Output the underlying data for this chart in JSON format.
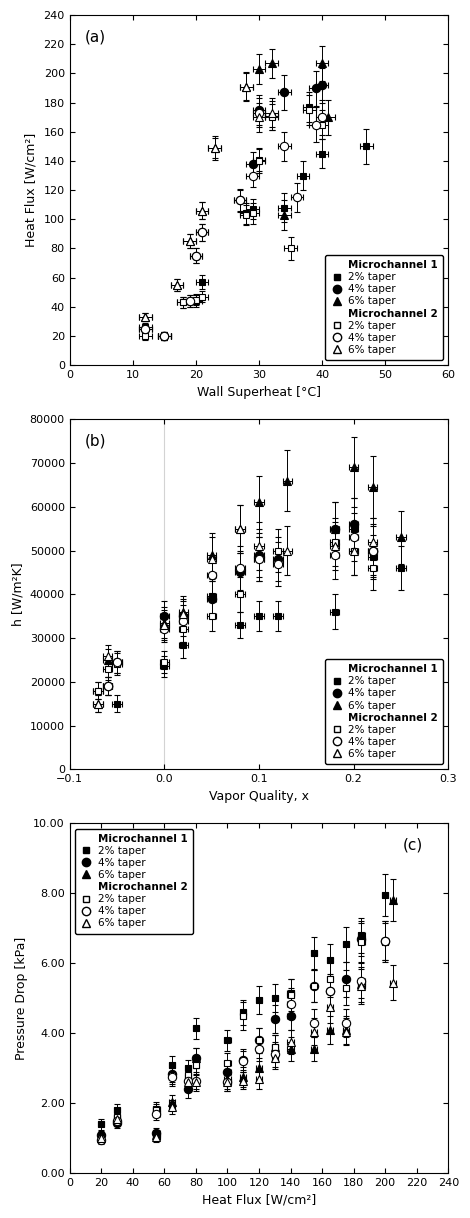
{
  "plot_a": {
    "title_label": "(a)",
    "xlabel": "Wall Superheat [°C]",
    "ylabel": "Heat Flux [W/cm²]",
    "xlim": [
      0,
      60
    ],
    "ylim": [
      0,
      240
    ],
    "xticks": [
      0,
      10,
      20,
      30,
      40,
      50,
      60
    ],
    "yticks": [
      0,
      20,
      40,
      60,
      80,
      100,
      120,
      140,
      160,
      180,
      200,
      220,
      240
    ],
    "mc1_2pct": {
      "x": [
        12,
        15,
        18,
        20,
        21,
        28,
        29,
        30,
        32,
        34,
        37,
        38,
        40,
        47
      ],
      "y": [
        26,
        20,
        43,
        44,
        57,
        104,
        107,
        141,
        171,
        108,
        130,
        177,
        145,
        150
      ],
      "xerr": [
        1,
        1,
        1,
        1,
        1,
        1,
        1,
        1,
        1,
        1,
        1,
        1,
        1,
        1
      ],
      "yerr": [
        3,
        3,
        4,
        4,
        5,
        7,
        7,
        8,
        10,
        10,
        10,
        10,
        10,
        12
      ]
    },
    "mc1_4pct": {
      "x": [
        12,
        15,
        19,
        20,
        21,
        27,
        29,
        30,
        34,
        39,
        40
      ],
      "y": [
        25,
        20,
        44,
        75,
        91,
        113,
        138,
        175,
        187,
        190,
        192
      ],
      "xerr": [
        1,
        1,
        1,
        1,
        1,
        1,
        1,
        1,
        1,
        1,
        1
      ],
      "yerr": [
        3,
        3,
        4,
        5,
        6,
        8,
        8,
        10,
        12,
        12,
        12
      ]
    },
    "mc1_6pct": {
      "x": [
        12,
        17,
        19,
        21,
        23,
        28,
        30,
        32,
        34,
        40,
        41
      ],
      "y": [
        33,
        55,
        85,
        106,
        149,
        191,
        203,
        207,
        103,
        207,
        170
      ],
      "xerr": [
        1,
        1,
        1,
        1,
        1,
        1,
        1,
        1,
        1,
        1,
        1
      ],
      "yerr": [
        3,
        4,
        5,
        6,
        8,
        10,
        10,
        10,
        10,
        12,
        12
      ]
    },
    "mc2_2pct": {
      "x": [
        12,
        15,
        18,
        20,
        21,
        28,
        29,
        30,
        32,
        35,
        38,
        40
      ],
      "y": [
        20,
        20,
        43,
        45,
        47,
        103,
        104,
        140,
        170,
        80,
        175,
        165
      ],
      "xerr": [
        1,
        1,
        1,
        1,
        1,
        1,
        1,
        1,
        1,
        1,
        1,
        1
      ],
      "yerr": [
        3,
        3,
        4,
        4,
        4,
        7,
        7,
        8,
        9,
        8,
        10,
        10
      ]
    },
    "mc2_4pct": {
      "x": [
        12,
        15,
        19,
        20,
        21,
        27,
        29,
        30,
        34,
        36,
        39,
        40
      ],
      "y": [
        25,
        20,
        44,
        75,
        91,
        113,
        130,
        173,
        150,
        115,
        165,
        170
      ],
      "xerr": [
        1,
        1,
        1,
        1,
        1,
        1,
        1,
        1,
        1,
        1,
        1,
        1
      ],
      "yerr": [
        3,
        3,
        4,
        5,
        6,
        7,
        8,
        10,
        10,
        10,
        12,
        12
      ]
    },
    "mc2_6pct": {
      "x": [
        12,
        17,
        19,
        21,
        23,
        28,
        30,
        32
      ],
      "y": [
        33,
        55,
        85,
        106,
        149,
        191,
        170,
        173
      ],
      "xerr": [
        1,
        1,
        1,
        1,
        1,
        1,
        1,
        1
      ],
      "yerr": [
        3,
        4,
        5,
        6,
        7,
        9,
        10,
        10
      ]
    }
  },
  "plot_b": {
    "title_label": "(b)",
    "xlabel": "Vapor Quality, x",
    "ylabel": "h [W/m²K]",
    "xlim": [
      -0.1,
      0.3
    ],
    "ylim": [
      0,
      80000
    ],
    "xticks": [
      -0.1,
      0.0,
      0.1,
      0.2,
      0.3
    ],
    "yticks": [
      0,
      10000,
      20000,
      30000,
      40000,
      50000,
      60000,
      70000,
      80000
    ],
    "vline_x": 0.0,
    "mc1_2pct": {
      "x": [
        -0.07,
        -0.06,
        -0.05,
        0.0,
        0.02,
        0.05,
        0.08,
        0.1,
        0.12,
        0.18,
        0.2,
        0.22,
        0.25
      ],
      "y": [
        18000,
        19000,
        15000,
        23500,
        28500,
        39500,
        33000,
        35000,
        35000,
        36000,
        55000,
        48500,
        46000
      ],
      "xerr": [
        0.005,
        0.005,
        0.005,
        0.005,
        0.005,
        0.005,
        0.005,
        0.005,
        0.005,
        0.005,
        0.005,
        0.005,
        0.005
      ],
      "yerr": [
        2000,
        2000,
        2000,
        2500,
        3000,
        4000,
        3000,
        3500,
        3500,
        4000,
        5000,
        5000,
        5000
      ]
    },
    "mc1_4pct": {
      "x": [
        -0.06,
        -0.05,
        0.0,
        0.02,
        0.05,
        0.08,
        0.1,
        0.12,
        0.18,
        0.2,
        0.22
      ],
      "y": [
        19000,
        24500,
        35000,
        35000,
        39000,
        45000,
        49000,
        48000,
        55000,
        56000,
        50000
      ],
      "xerr": [
        0.005,
        0.005,
        0.005,
        0.005,
        0.005,
        0.005,
        0.005,
        0.005,
        0.005,
        0.005,
        0.005
      ],
      "yerr": [
        2000,
        2500,
        3500,
        3500,
        4000,
        5000,
        5000,
        5000,
        6000,
        6000,
        6000
      ]
    },
    "mc1_6pct": {
      "x": [
        -0.07,
        -0.06,
        0.0,
        0.02,
        0.05,
        0.08,
        0.1,
        0.13,
        0.18,
        0.2,
        0.22,
        0.25
      ],
      "y": [
        15000,
        25000,
        33500,
        36000,
        49000,
        55000,
        61000,
        66000,
        55000,
        69000,
        64500,
        53000
      ],
      "xerr": [
        0.005,
        0.005,
        0.005,
        0.005,
        0.005,
        0.005,
        0.005,
        0.005,
        0.005,
        0.005,
        0.005,
        0.005
      ],
      "yerr": [
        2000,
        2500,
        3500,
        3500,
        5000,
        5500,
        6000,
        7000,
        6000,
        7000,
        7000,
        6000
      ]
    },
    "mc2_2pct": {
      "x": [
        -0.07,
        -0.06,
        -0.05,
        0.0,
        0.02,
        0.05,
        0.08,
        0.1,
        0.12,
        0.18,
        0.2,
        0.22
      ],
      "y": [
        18000,
        23000,
        24000,
        24500,
        32000,
        35000,
        40000,
        48000,
        50000,
        52000,
        50000,
        46000
      ],
      "xerr": [
        0.005,
        0.005,
        0.005,
        0.005,
        0.005,
        0.005,
        0.005,
        0.005,
        0.005,
        0.005,
        0.005,
        0.005
      ],
      "yerr": [
        2000,
        2500,
        2500,
        2500,
        3000,
        3500,
        4000,
        5000,
        5000,
        5500,
        5500,
        5000
      ]
    },
    "mc2_4pct": {
      "x": [
        -0.06,
        -0.05,
        0.0,
        0.02,
        0.05,
        0.08,
        0.1,
        0.12,
        0.18,
        0.2,
        0.22
      ],
      "y": [
        19000,
        24500,
        32000,
        34000,
        44500,
        46000,
        48000,
        47000,
        49000,
        53000,
        50000
      ],
      "xerr": [
        0.005,
        0.005,
        0.005,
        0.005,
        0.005,
        0.005,
        0.005,
        0.005,
        0.005,
        0.005,
        0.005
      ],
      "yerr": [
        2000,
        2500,
        3000,
        3500,
        4500,
        5000,
        5000,
        5000,
        5500,
        5500,
        5500
      ]
    },
    "mc2_6pct": {
      "x": [
        -0.07,
        -0.06,
        0.0,
        0.02,
        0.05,
        0.08,
        0.1,
        0.13,
        0.18,
        0.2,
        0.22
      ],
      "y": [
        15000,
        26000,
        33000,
        35500,
        48000,
        55000,
        51000,
        50000,
        51000,
        50000,
        52000
      ],
      "xerr": [
        0.005,
        0.005,
        0.005,
        0.005,
        0.005,
        0.005,
        0.005,
        0.005,
        0.005,
        0.005,
        0.005
      ],
      "yerr": [
        2000,
        2500,
        3500,
        3500,
        5000,
        5500,
        5500,
        5500,
        5500,
        5500,
        5500
      ]
    }
  },
  "plot_c": {
    "title_label": "(c)",
    "xlabel": "Heat Flux [W/cm²]",
    "ylabel": "Pressure Drop [kPa]",
    "xlim": [
      0,
      240
    ],
    "ylim": [
      0.0,
      10.0
    ],
    "xticks": [
      0,
      20,
      40,
      60,
      80,
      100,
      120,
      140,
      160,
      180,
      200,
      220,
      240
    ],
    "yticks": [
      0.0,
      2.0,
      4.0,
      6.0,
      8.0,
      10.0
    ],
    "mc1_2pct": {
      "x": [
        20,
        30,
        55,
        65,
        75,
        80,
        100,
        110,
        120,
        130,
        140,
        155,
        165,
        175,
        185,
        200
      ],
      "y": [
        1.4,
        1.8,
        1.85,
        3.1,
        3.0,
        4.15,
        3.8,
        4.6,
        4.95,
        5.0,
        5.15,
        6.3,
        6.1,
        6.55,
        6.8,
        7.95
      ],
      "xerr": [
        2,
        2,
        2,
        2,
        2,
        2,
        2,
        2,
        2,
        2,
        2,
        2,
        2,
        2,
        2,
        2
      ],
      "yerr": [
        0.15,
        0.18,
        0.18,
        0.25,
        0.25,
        0.3,
        0.3,
        0.35,
        0.4,
        0.4,
        0.4,
        0.45,
        0.45,
        0.5,
        0.5,
        0.6
      ]
    },
    "mc1_4pct": {
      "x": [
        20,
        30,
        55,
        65,
        75,
        80,
        100,
        110,
        120,
        130,
        140,
        155,
        165,
        175,
        185,
        200
      ],
      "y": [
        1.1,
        1.45,
        1.15,
        2.85,
        2.4,
        3.3,
        2.9,
        3.25,
        3.8,
        4.4,
        4.5,
        5.35,
        5.2,
        5.55,
        6.7,
        6.65
      ],
      "xerr": [
        2,
        2,
        2,
        2,
        2,
        2,
        2,
        2,
        2,
        2,
        2,
        2,
        2,
        2,
        2,
        2
      ],
      "yerr": [
        0.12,
        0.15,
        0.15,
        0.25,
        0.25,
        0.28,
        0.28,
        0.3,
        0.35,
        0.4,
        0.4,
        0.45,
        0.45,
        0.5,
        0.5,
        0.55
      ]
    },
    "mc1_6pct": {
      "x": [
        20,
        30,
        55,
        65,
        75,
        80,
        100,
        110,
        120,
        130,
        140,
        155,
        165,
        175,
        185,
        205
      ],
      "y": [
        1.0,
        1.6,
        1.1,
        2.05,
        2.75,
        3.3,
        2.7,
        2.75,
        3.0,
        3.6,
        3.55,
        3.55,
        4.1,
        4.1,
        5.4,
        7.8
      ],
      "xerr": [
        2,
        2,
        2,
        2,
        2,
        2,
        2,
        2,
        2,
        2,
        2,
        2,
        2,
        2,
        2,
        2
      ],
      "yerr": [
        0.12,
        0.15,
        0.15,
        0.2,
        0.25,
        0.28,
        0.28,
        0.28,
        0.3,
        0.35,
        0.35,
        0.35,
        0.4,
        0.4,
        0.5,
        0.6
      ]
    },
    "mc2_2pct": {
      "x": [
        20,
        30,
        55,
        65,
        75,
        80,
        100,
        110,
        120,
        130,
        140,
        155,
        165,
        175,
        185,
        200
      ],
      "y": [
        1.0,
        1.6,
        1.8,
        2.8,
        2.8,
        3.1,
        3.15,
        4.5,
        3.8,
        3.6,
        5.1,
        5.35,
        5.55,
        5.3,
        6.6,
        6.6
      ],
      "xerr": [
        2,
        2,
        2,
        2,
        2,
        2,
        2,
        2,
        2,
        2,
        2,
        2,
        2,
        2,
        2,
        2
      ],
      "yerr": [
        0.12,
        0.15,
        0.18,
        0.25,
        0.25,
        0.28,
        0.28,
        0.4,
        0.35,
        0.35,
        0.45,
        0.45,
        0.5,
        0.5,
        0.55,
        0.55
      ]
    },
    "mc2_4pct": {
      "x": [
        20,
        30,
        55,
        65,
        75,
        80,
        100,
        110,
        120,
        130,
        140,
        155,
        165,
        175,
        185,
        200
      ],
      "y": [
        0.95,
        1.5,
        1.7,
        2.75,
        2.65,
        2.65,
        2.6,
        3.2,
        3.55,
        3.4,
        4.85,
        4.3,
        5.2,
        4.3,
        5.5,
        6.65
      ],
      "xerr": [
        2,
        2,
        2,
        2,
        2,
        2,
        2,
        2,
        2,
        2,
        2,
        2,
        2,
        2,
        2,
        2
      ],
      "yerr": [
        0.12,
        0.15,
        0.18,
        0.25,
        0.25,
        0.25,
        0.25,
        0.3,
        0.35,
        0.35,
        0.45,
        0.4,
        0.5,
        0.4,
        0.5,
        0.55
      ]
    },
    "mc2_6pct": {
      "x": [
        20,
        30,
        55,
        65,
        75,
        80,
        100,
        110,
        120,
        130,
        140,
        155,
        165,
        175,
        185,
        205
      ],
      "y": [
        1.0,
        1.55,
        1.05,
        1.9,
        2.6,
        2.6,
        2.6,
        2.65,
        2.7,
        3.3,
        3.75,
        4.05,
        4.75,
        4.05,
        5.35,
        5.45
      ],
      "xerr": [
        2,
        2,
        2,
        2,
        2,
        2,
        2,
        2,
        2,
        2,
        2,
        2,
        2,
        2,
        2,
        2
      ],
      "yerr": [
        0.12,
        0.15,
        0.15,
        0.2,
        0.25,
        0.25,
        0.25,
        0.25,
        0.28,
        0.32,
        0.35,
        0.38,
        0.45,
        0.38,
        0.5,
        0.5
      ]
    }
  },
  "marker_size": 5,
  "capsize": 2,
  "elinewidth": 0.7,
  "marker_linewidth": 0.8,
  "legend_fontsize": 7.5,
  "axis_fontsize": 9,
  "tick_fontsize": 8
}
